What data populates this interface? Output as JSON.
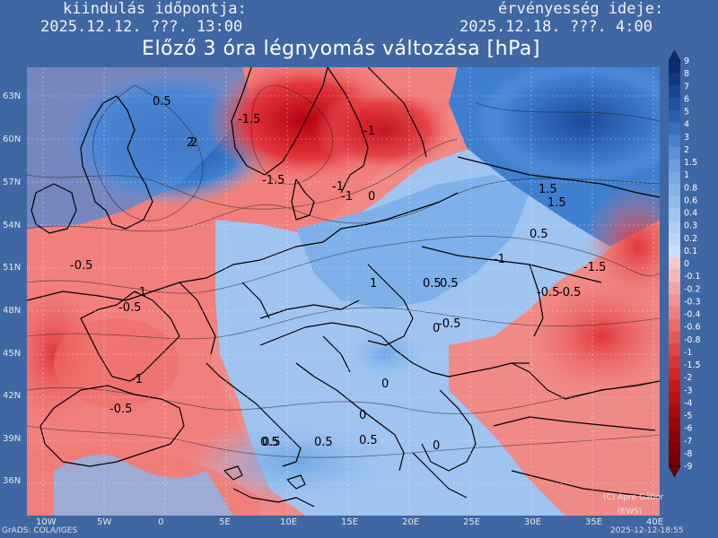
{
  "header": {
    "start_label": "kiindulás időpontja:",
    "start_value": "2025.12.12. ???. 13:00",
    "valid_label": "érvényesség ideje:",
    "valid_value": "2025.12.18. ???. 4:00",
    "title": "Előző 3 óra légnyomás változása [hPa]"
  },
  "axes": {
    "lat_labels": [
      "63N",
      "60N",
      "57N",
      "54N",
      "51N",
      "48N",
      "45N",
      "42N",
      "39N",
      "36N"
    ],
    "lon_labels": [
      "10W",
      "5W",
      "0",
      "5E",
      "10E",
      "15E",
      "20E",
      "25E",
      "30E",
      "35E",
      "40E"
    ]
  },
  "legend": {
    "levels": [
      "9",
      "8",
      "7",
      "6",
      "5",
      "4",
      "3",
      "2",
      "1.5",
      "1",
      "0.8",
      "0.6",
      "0.4",
      "0.3",
      "0.2",
      "0.1",
      "0",
      "-0.1",
      "-0.2",
      "-0.3",
      "-0.4",
      "-0.6",
      "-0.8",
      "-1",
      "-1.5",
      "-2",
      "-3",
      "-4",
      "-5",
      "-6",
      "-7",
      "-8",
      "-9"
    ],
    "positive_color": "#1f4fa0",
    "negative_color": "#c8101a"
  },
  "contour_labels": [
    "0.5",
    "2",
    "-1.5",
    "-1",
    "1.5",
    "-1.5",
    "-1",
    "0",
    "0.5",
    "-0.5",
    "-1",
    "-0.5",
    "-1",
    "0.5",
    "0",
    "-1.5",
    "-0.5",
    "-1",
    "-0.5",
    "0",
    "0.5",
    "0.5",
    "0",
    "0.5",
    "0.5",
    "-0.5",
    "0",
    "1",
    "0.5",
    "-0.5",
    "-1",
    "2",
    "1.5"
  ],
  "footer": {
    "grads": "GrADS: COLA/IGES",
    "copyright": "(C) Ápre Gábor",
    "org": "(EWS)",
    "timestamp": "2025-12-12-18:55"
  }
}
